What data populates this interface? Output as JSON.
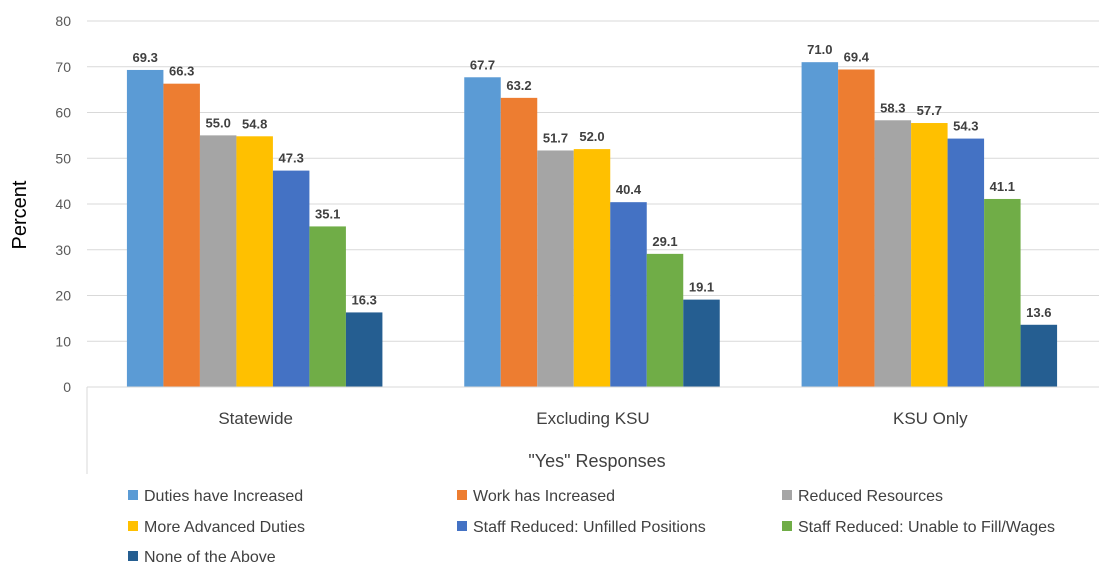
{
  "chart_data": {
    "type": "bar",
    "categories": [
      "Statewide",
      "Excluding KSU",
      "KSU Only"
    ],
    "series": [
      {
        "name": "Duties have Increased",
        "color": "#5B9BD5",
        "values": [
          69.3,
          67.7,
          71.0
        ],
        "labels": [
          "69.3",
          "67.7",
          "71.0"
        ]
      },
      {
        "name": "Work has Increased",
        "color": "#ED7D31",
        "values": [
          66.3,
          63.2,
          69.4
        ],
        "labels": [
          "66.3",
          "63.2",
          "69.4"
        ]
      },
      {
        "name": "Reduced Resources",
        "color": "#A5A5A5",
        "values": [
          55.0,
          51.7,
          58.3
        ],
        "labels": [
          "55.0",
          "51.7",
          "58.3"
        ]
      },
      {
        "name": "More Advanced Duties",
        "color": "#FFC000",
        "values": [
          54.8,
          52.0,
          57.7
        ],
        "labels": [
          "54.8",
          "52.0",
          "57.7"
        ]
      },
      {
        "name": "Staff Reduced: Unfilled Positions",
        "color": "#4472C4",
        "values": [
          47.3,
          40.4,
          54.3
        ],
        "labels": [
          "47.3",
          "40.4",
          "54.3"
        ]
      },
      {
        "name": "Staff Reduced: Unable to Fill/Wages",
        "color": "#70AD47",
        "values": [
          35.1,
          29.1,
          41.1
        ],
        "labels": [
          "35.1",
          "29.1",
          "41.1"
        ]
      },
      {
        "name": "None of the Above",
        "color": "#255E91",
        "values": [
          16.3,
          19.1,
          13.6
        ],
        "labels": [
          "16.3",
          "19.1",
          "13.6"
        ]
      }
    ],
    "title": "",
    "xlabel": "\"Yes\" Responses",
    "ylabel": "Percent",
    "ylim": [
      0,
      80
    ],
    "yticks": [
      "0",
      "10",
      "20",
      "30",
      "40",
      "50",
      "60",
      "70",
      "80"
    ],
    "grid": true,
    "legend_position": "bottom"
  }
}
